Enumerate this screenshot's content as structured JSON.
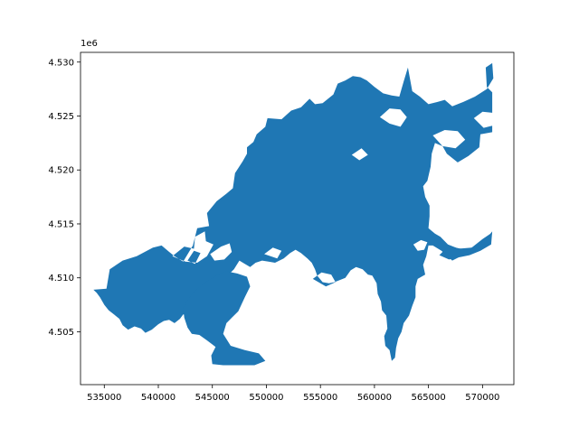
{
  "chart_data": {
    "type": "map",
    "title": "",
    "xlabel": "",
    "ylabel": "",
    "y_offset_label": "1e6",
    "xlim": [
      532800,
      572900
    ],
    "ylim": [
      4500100,
      4530900
    ],
    "x_ticks": [
      535000,
      540000,
      545000,
      550000,
      555000,
      560000,
      565000,
      570000
    ],
    "x_tick_labels": [
      "535000",
      "540000",
      "545000",
      "550000",
      "555000",
      "560000",
      "565000",
      "570000"
    ],
    "y_ticks": [
      4505000,
      4510000,
      4515000,
      4520000,
      4525000,
      4530000
    ],
    "y_tick_labels": [
      "4.505",
      "4.510",
      "4.515",
      "4.520",
      "4.525",
      "4.530"
    ],
    "grid": false,
    "fill_color": "#1f77b4",
    "main_region": [
      [
        534000,
        4508900
      ],
      [
        535200,
        4509000
      ],
      [
        535500,
        4510800
      ],
      [
        536700,
        4511600
      ],
      [
        538000,
        4512000
      ],
      [
        539500,
        4512800
      ],
      [
        540300,
        4513000
      ],
      [
        541000,
        4512400
      ],
      [
        541500,
        4512000
      ],
      [
        542300,
        4511500
      ],
      [
        543200,
        4513000
      ],
      [
        543600,
        4514600
      ],
      [
        544700,
        4514800
      ],
      [
        544500,
        4516000
      ],
      [
        545400,
        4517100
      ],
      [
        546300,
        4517800
      ],
      [
        546900,
        4518300
      ],
      [
        547100,
        4519700
      ],
      [
        547800,
        4520800
      ],
      [
        548200,
        4521500
      ],
      [
        548200,
        4522100
      ],
      [
        548800,
        4522600
      ],
      [
        549100,
        4523300
      ],
      [
        549900,
        4524000
      ],
      [
        550100,
        4524800
      ],
      [
        551400,
        4524700
      ],
      [
        552300,
        4525500
      ],
      [
        553200,
        4525800
      ],
      [
        554000,
        4526600
      ],
      [
        554500,
        4526100
      ],
      [
        555200,
        4526200
      ],
      [
        556200,
        4527000
      ],
      [
        556600,
        4528000
      ],
      [
        557300,
        4528300
      ],
      [
        558000,
        4528700
      ],
      [
        558700,
        4528600
      ],
      [
        559300,
        4528300
      ],
      [
        560000,
        4527700
      ],
      [
        560800,
        4527100
      ],
      [
        561600,
        4526900
      ],
      [
        562300,
        4526800
      ],
      [
        562700,
        4528200
      ],
      [
        563100,
        4529500
      ],
      [
        563500,
        4527300
      ],
      [
        564200,
        4526800
      ],
      [
        565000,
        4526100
      ],
      [
        565800,
        4526300
      ],
      [
        566500,
        4526500
      ],
      [
        567200,
        4525900
      ],
      [
        568200,
        4526300
      ],
      [
        569300,
        4526800
      ],
      [
        570400,
        4527500
      ],
      [
        571000,
        4528500
      ],
      [
        570900,
        4529900
      ],
      [
        570300,
        4529500
      ],
      [
        570400,
        4527700
      ],
      [
        570900,
        4527200
      ],
      [
        570900,
        4523500
      ],
      [
        569800,
        4523300
      ],
      [
        569700,
        4522100
      ],
      [
        568700,
        4521300
      ],
      [
        567700,
        4520700
      ],
      [
        566700,
        4521500
      ],
      [
        566300,
        4522200
      ],
      [
        565600,
        4522500
      ],
      [
        565300,
        4521500
      ],
      [
        565200,
        4520300
      ],
      [
        564900,
        4519000
      ],
      [
        564500,
        4518500
      ],
      [
        564700,
        4517500
      ],
      [
        565100,
        4516700
      ],
      [
        565100,
        4515700
      ],
      [
        565000,
        4514600
      ],
      [
        565600,
        4514100
      ],
      [
        566100,
        4513800
      ],
      [
        566800,
        4513100
      ],
      [
        567800,
        4512700
      ],
      [
        569000,
        4512800
      ],
      [
        570000,
        4513600
      ],
      [
        570900,
        4514200
      ],
      [
        570700,
        4513300
      ],
      [
        569700,
        4512800
      ],
      [
        569000,
        4512200
      ],
      [
        568000,
        4512000
      ],
      [
        567200,
        4511600
      ],
      [
        566200,
        4512500
      ],
      [
        565400,
        4513000
      ],
      [
        565000,
        4513000
      ],
      [
        564800,
        4512000
      ],
      [
        564500,
        4511200
      ],
      [
        564700,
        4510300
      ],
      [
        564000,
        4509900
      ],
      [
        563800,
        4509200
      ],
      [
        563800,
        4508200
      ],
      [
        563500,
        4507400
      ],
      [
        563200,
        4506500
      ],
      [
        562700,
        4505800
      ],
      [
        562500,
        4505000
      ],
      [
        562200,
        4504400
      ],
      [
        562000,
        4503500
      ],
      [
        561900,
        4502600
      ],
      [
        561600,
        4502300
      ],
      [
        561400,
        4503300
      ],
      [
        561000,
        4503700
      ],
      [
        560900,
        4504600
      ],
      [
        561200,
        4505300
      ],
      [
        561100,
        4506500
      ],
      [
        560700,
        4507000
      ],
      [
        560600,
        4507800
      ],
      [
        560300,
        4508500
      ],
      [
        560200,
        4509500
      ],
      [
        559800,
        4510200
      ],
      [
        559400,
        4510300
      ],
      [
        558900,
        4510800
      ],
      [
        558300,
        4511000
      ],
      [
        557800,
        4510700
      ],
      [
        557300,
        4510000
      ],
      [
        556800,
        4509800
      ],
      [
        556300,
        4509600
      ],
      [
        555800,
        4509500
      ],
      [
        555200,
        4509600
      ],
      [
        554700,
        4510200
      ],
      [
        554500,
        4510800
      ],
      [
        554200,
        4511400
      ],
      [
        553800,
        4511800
      ],
      [
        553200,
        4512300
      ],
      [
        552700,
        4512600
      ],
      [
        552200,
        4512300
      ],
      [
        551600,
        4511800
      ],
      [
        550800,
        4511400
      ],
      [
        550200,
        4511500
      ],
      [
        549600,
        4511600
      ],
      [
        549000,
        4511400
      ],
      [
        548500,
        4511000
      ],
      [
        548000,
        4511300
      ],
      [
        547500,
        4511600
      ],
      [
        547000,
        4510800
      ],
      [
        546500,
        4510300
      ],
      [
        546100,
        4509500
      ],
      [
        545700,
        4509200
      ],
      [
        545100,
        4509300
      ],
      [
        544700,
        4508800
      ],
      [
        544300,
        4508300
      ],
      [
        543900,
        4507800
      ],
      [
        543500,
        4507300
      ],
      [
        543100,
        4507000
      ],
      [
        542700,
        4506600
      ],
      [
        542300,
        4506600
      ],
      [
        542000,
        4506200
      ],
      [
        541500,
        4505800
      ],
      [
        541000,
        4506100
      ],
      [
        540500,
        4506000
      ],
      [
        540000,
        4505700
      ],
      [
        539400,
        4505200
      ],
      [
        538800,
        4504900
      ],
      [
        538400,
        4505300
      ],
      [
        537800,
        4505500
      ],
      [
        537200,
        4505200
      ],
      [
        536700,
        4505600
      ],
      [
        536400,
        4506200
      ],
      [
        535900,
        4506600
      ],
      [
        535400,
        4507000
      ],
      [
        535000,
        4507500
      ],
      [
        534600,
        4508200
      ],
      [
        534300,
        4508600
      ]
    ],
    "southwest_lobe": [
      [
        545500,
        4510300
      ],
      [
        546300,
        4510600
      ],
      [
        547300,
        4510400
      ],
      [
        548200,
        4510100
      ],
      [
        548500,
        4509200
      ],
      [
        548000,
        4508200
      ],
      [
        547400,
        4506900
      ],
      [
        546800,
        4506300
      ],
      [
        546300,
        4505800
      ],
      [
        546000,
        4504800
      ],
      [
        546700,
        4503700
      ],
      [
        548000,
        4503300
      ],
      [
        549300,
        4503000
      ],
      [
        549900,
        4502300
      ],
      [
        548900,
        4501900
      ],
      [
        547500,
        4501900
      ],
      [
        546000,
        4501900
      ],
      [
        545000,
        4502000
      ],
      [
        544900,
        4502800
      ],
      [
        545300,
        4503600
      ],
      [
        544500,
        4504200
      ],
      [
        543800,
        4504700
      ],
      [
        543100,
        4504800
      ],
      [
        542700,
        4505400
      ],
      [
        542400,
        4506300
      ],
      [
        542300,
        4507200
      ],
      [
        542800,
        4508100
      ],
      [
        543500,
        4508900
      ],
      [
        544400,
        4509600
      ]
    ],
    "east_arm": [
      [
        566000,
        4512100
      ],
      [
        566600,
        4512700
      ],
      [
        567500,
        4512800
      ],
      [
        568500,
        4512600
      ],
      [
        569500,
        4513000
      ],
      [
        570500,
        4513800
      ],
      [
        570900,
        4514300
      ],
      [
        570800,
        4513100
      ],
      [
        569800,
        4512500
      ],
      [
        568800,
        4512100
      ],
      [
        567800,
        4511900
      ],
      [
        566900,
        4511700
      ]
    ],
    "lakes": [
      [
        [
          541300,
          4512000
        ],
        [
          542400,
          4512900
        ],
        [
          543300,
          4512700
        ],
        [
          543400,
          4513800
        ],
        [
          544300,
          4514300
        ],
        [
          544400,
          4513400
        ],
        [
          545100,
          4513100
        ],
        [
          544500,
          4512000
        ],
        [
          543600,
          4511400
        ],
        [
          542500,
          4511500
        ]
      ],
      [
        [
          542700,
          4511600
        ],
        [
          543300,
          4512500
        ],
        [
          543900,
          4512300
        ],
        [
          543400,
          4511300
        ]
      ],
      [
        [
          544800,
          4512200
        ],
        [
          545800,
          4512900
        ],
        [
          546600,
          4513200
        ],
        [
          546800,
          4512400
        ],
        [
          546100,
          4511700
        ],
        [
          545200,
          4511600
        ]
      ],
      [
        [
          560500,
          4524900
        ],
        [
          561400,
          4525700
        ],
        [
          562400,
          4525600
        ],
        [
          563000,
          4524900
        ],
        [
          562400,
          4524000
        ],
        [
          561400,
          4524300
        ]
      ],
      [
        [
          565400,
          4523200
        ],
        [
          566500,
          4523700
        ],
        [
          567700,
          4523600
        ],
        [
          568400,
          4522800
        ],
        [
          567500,
          4522000
        ],
        [
          566300,
          4522200
        ]
      ],
      [
        [
          569200,
          4524800
        ],
        [
          570000,
          4525400
        ],
        [
          570900,
          4525300
        ],
        [
          570900,
          4524100
        ],
        [
          570100,
          4523900
        ]
      ],
      [
        [
          563600,
          4513100
        ],
        [
          564300,
          4513500
        ],
        [
          564900,
          4513300
        ],
        [
          564600,
          4512600
        ],
        [
          564000,
          4512500
        ]
      ],
      [
        [
          554300,
          4509900
        ],
        [
          555100,
          4510500
        ],
        [
          556000,
          4510300
        ],
        [
          556400,
          4509600
        ],
        [
          555500,
          4509200
        ]
      ],
      [
        [
          549800,
          4512200
        ],
        [
          550600,
          4512800
        ],
        [
          551400,
          4512500
        ],
        [
          551000,
          4511800
        ]
      ],
      [
        [
          557900,
          4521400
        ],
        [
          558800,
          4522000
        ],
        [
          559400,
          4521400
        ],
        [
          558600,
          4520900
        ]
      ]
    ]
  }
}
